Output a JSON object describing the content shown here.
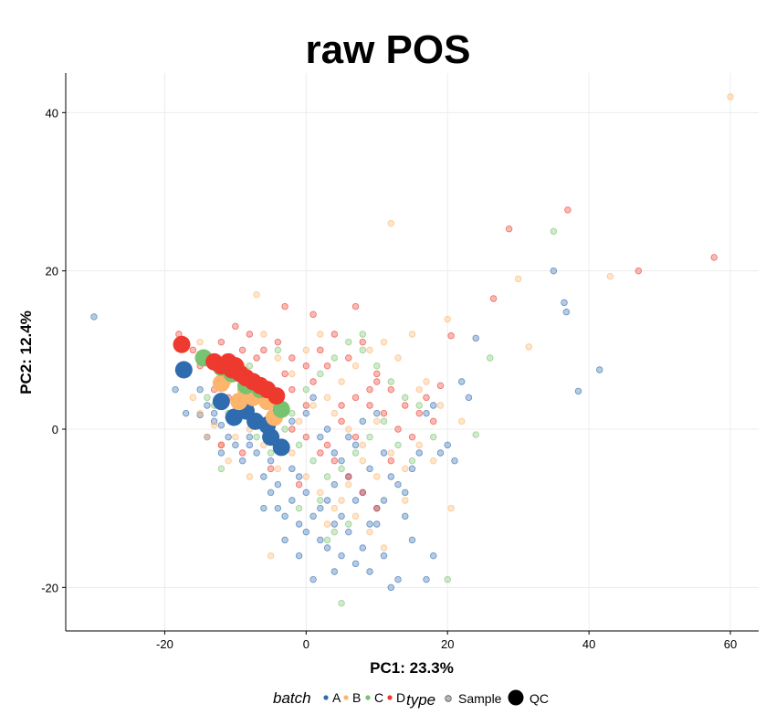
{
  "chart_data": {
    "type": "scatter",
    "title": "raw  POS",
    "xlabel": "PC1: 23.3%",
    "ylabel": "PC2: 12.4%",
    "xlim": [
      -34,
      64
    ],
    "ylim": [
      -25.5,
      45
    ],
    "xticks": [
      -20,
      0,
      20,
      40,
      60
    ],
    "yticks": [
      -20,
      0,
      20,
      40
    ],
    "grid": true,
    "legend_position": "bottom",
    "colors": {
      "A": "#2F6BAF",
      "B": "#FDB46C",
      "C": "#77C36F",
      "D": "#EE3A2E"
    },
    "legend": {
      "batch_title": "batch",
      "batch_labels": [
        "A",
        "B",
        "C",
        "D"
      ],
      "type_title": "type",
      "type_labels": [
        "Sample",
        "QC"
      ]
    },
    "series": [
      {
        "batch": "A",
        "type": "Sample",
        "points": [
          [
            -30,
            14.2
          ],
          [
            -18.5,
            5
          ],
          [
            -17,
            2
          ],
          [
            -15,
            1.8
          ],
          [
            -14,
            3
          ],
          [
            -13,
            1
          ],
          [
            -12,
            0.5
          ],
          [
            -11,
            -1
          ],
          [
            -12,
            -3
          ],
          [
            -10,
            -2
          ],
          [
            -9,
            -4
          ],
          [
            -8,
            -1
          ],
          [
            -7,
            -3
          ],
          [
            -6,
            -6
          ],
          [
            -5,
            -8
          ],
          [
            -4,
            -10
          ],
          [
            -3,
            -11
          ],
          [
            -2,
            -9
          ],
          [
            -1,
            -12
          ],
          [
            0,
            -13
          ],
          [
            1,
            -11
          ],
          [
            2,
            -14
          ],
          [
            3,
            -15
          ],
          [
            4,
            -12
          ],
          [
            5,
            -16
          ],
          [
            6,
            -13
          ],
          [
            7,
            -17
          ],
          [
            8,
            -15
          ],
          [
            9,
            -18
          ],
          [
            10,
            -12
          ],
          [
            11,
            -16
          ],
          [
            12,
            -20
          ],
          [
            13,
            -19
          ],
          [
            14,
            -8
          ],
          [
            15,
            -5
          ],
          [
            16,
            -3
          ],
          [
            17,
            2
          ],
          [
            18,
            3
          ],
          [
            20,
            -2
          ],
          [
            21,
            -4
          ],
          [
            22,
            6
          ],
          [
            23,
            4
          ],
          [
            24,
            11.5
          ],
          [
            35,
            20
          ],
          [
            36.5,
            16
          ],
          [
            36.8,
            14.8
          ],
          [
            38.5,
            4.8
          ],
          [
            41.5,
            7.5
          ],
          [
            -2,
            1
          ],
          [
            0,
            2
          ],
          [
            2,
            -1
          ],
          [
            4,
            -3
          ],
          [
            6,
            -6
          ],
          [
            8,
            -8
          ],
          [
            -9,
            2
          ],
          [
            -6,
            1
          ],
          [
            -3,
            3
          ],
          [
            1,
            4
          ],
          [
            3,
            0
          ],
          [
            5,
            -4
          ],
          [
            7,
            -2
          ],
          [
            9,
            -5
          ],
          [
            11,
            -3
          ],
          [
            13,
            -7
          ],
          [
            -15,
            5
          ],
          [
            -13,
            2
          ],
          [
            -11,
            1.5
          ],
          [
            -8,
            -2
          ],
          [
            -5,
            -4
          ],
          [
            -1,
            -6
          ],
          [
            3,
            -9
          ],
          [
            5,
            -11
          ],
          [
            7,
            -9
          ],
          [
            9,
            -12
          ],
          [
            -4,
            -7
          ],
          [
            -2,
            -5
          ],
          [
            0,
            -8
          ],
          [
            2,
            -10
          ],
          [
            4,
            -7
          ],
          [
            10,
            -10
          ],
          [
            12,
            -6
          ],
          [
            -7,
            1.5
          ],
          [
            -4,
            -2
          ],
          [
            15,
            -14
          ],
          [
            17,
            -19
          ],
          [
            -14,
            -1
          ],
          [
            1,
            -19
          ],
          [
            -10,
            3
          ],
          [
            6,
            -1
          ],
          [
            8,
            1
          ],
          [
            10,
            2
          ],
          [
            -3,
            -14
          ],
          [
            18,
            -16
          ],
          [
            -6,
            -10
          ],
          [
            11,
            -9
          ],
          [
            14,
            -11
          ],
          [
            -12,
            4
          ],
          [
            19,
            -3
          ],
          [
            -1,
            -16
          ],
          [
            4,
            -18
          ]
        ]
      },
      {
        "batch": "B",
        "type": "Sample",
        "points": [
          [
            -16,
            4
          ],
          [
            -15,
            2
          ],
          [
            -14,
            -1
          ],
          [
            -13,
            0.5
          ],
          [
            -12,
            -2
          ],
          [
            -10,
            -1
          ],
          [
            -8,
            0
          ],
          [
            -6,
            -2
          ],
          [
            -4,
            -5
          ],
          [
            -2,
            -3
          ],
          [
            0,
            -6
          ],
          [
            2,
            -8
          ],
          [
            4,
            -10
          ],
          [
            6,
            -7
          ],
          [
            8,
            -4
          ],
          [
            10,
            -6
          ],
          [
            12,
            -3
          ],
          [
            14,
            -5
          ],
          [
            16,
            -2
          ],
          [
            18,
            -4
          ],
          [
            20,
            13.9
          ],
          [
            20.5,
            -10
          ],
          [
            30,
            19
          ],
          [
            31.5,
            10.4
          ],
          [
            43,
            19.3
          ],
          [
            60,
            42
          ],
          [
            -7,
            17
          ],
          [
            12,
            26
          ],
          [
            -5,
            -16
          ],
          [
            3,
            -12
          ],
          [
            5,
            -9
          ],
          [
            7,
            -11
          ],
          [
            9,
            -13
          ],
          [
            11,
            -15
          ],
          [
            -3,
            2
          ],
          [
            -1,
            1
          ],
          [
            1,
            3
          ],
          [
            3,
            4
          ],
          [
            5,
            6
          ],
          [
            7,
            8
          ],
          [
            9,
            10
          ],
          [
            11,
            11
          ],
          [
            13,
            9
          ],
          [
            15,
            12
          ],
          [
            17,
            6
          ],
          [
            19,
            3
          ],
          [
            -11,
            6
          ],
          [
            -9,
            8
          ],
          [
            -5,
            5
          ],
          [
            -2,
            7
          ],
          [
            4,
            2
          ],
          [
            6,
            0
          ],
          [
            8,
            -2
          ],
          [
            10,
            1
          ],
          [
            -6,
            12
          ],
          [
            -4,
            9
          ],
          [
            0,
            10
          ],
          [
            2,
            12
          ],
          [
            -15,
            11
          ],
          [
            16,
            5
          ],
          [
            22,
            1
          ],
          [
            14,
            -9
          ],
          [
            -8,
            -6
          ],
          [
            -11,
            -4
          ]
        ]
      },
      {
        "batch": "C",
        "type": "Sample",
        "points": [
          [
            -13,
            3
          ],
          [
            -11,
            2
          ],
          [
            -9,
            4
          ],
          [
            -7,
            -1
          ],
          [
            -5,
            -3
          ],
          [
            -3,
            0
          ],
          [
            -1,
            -2
          ],
          [
            1,
            -4
          ],
          [
            3,
            -6
          ],
          [
            5,
            -5
          ],
          [
            7,
            -3
          ],
          [
            9,
            -1
          ],
          [
            11,
            1
          ],
          [
            13,
            -2
          ],
          [
            15,
            -4
          ],
          [
            -8,
            8
          ],
          [
            -6,
            6
          ],
          [
            -4,
            4
          ],
          [
            -2,
            2
          ],
          [
            0,
            5
          ],
          [
            2,
            7
          ],
          [
            4,
            9
          ],
          [
            6,
            11
          ],
          [
            8,
            10
          ],
          [
            10,
            8
          ],
          [
            12,
            6
          ],
          [
            35,
            25
          ],
          [
            26,
            9
          ],
          [
            24,
            -0.7
          ],
          [
            20,
            -19
          ],
          [
            5,
            -22
          ],
          [
            -1,
            -10
          ],
          [
            3,
            -14
          ],
          [
            6,
            -12
          ],
          [
            -10,
            7
          ],
          [
            -4,
            10
          ],
          [
            8,
            12
          ],
          [
            14,
            4
          ],
          [
            16,
            3
          ],
          [
            18,
            -1
          ],
          [
            -14,
            4
          ],
          [
            -12,
            -5
          ],
          [
            2,
            -9
          ],
          [
            4,
            -13
          ]
        ]
      },
      {
        "batch": "D",
        "type": "Sample",
        "points": [
          [
            -18,
            12
          ],
          [
            -16,
            10
          ],
          [
            -14,
            9
          ],
          [
            -12,
            11
          ],
          [
            -10,
            8
          ],
          [
            -8,
            12
          ],
          [
            -6,
            10
          ],
          [
            -4,
            11
          ],
          [
            -2,
            9
          ],
          [
            0,
            8
          ],
          [
            2,
            10
          ],
          [
            4,
            12
          ],
          [
            6,
            9
          ],
          [
            8,
            11
          ],
          [
            10,
            7
          ],
          [
            12,
            5
          ],
          [
            14,
            3
          ],
          [
            16,
            2
          ],
          [
            18,
            1
          ],
          [
            -10,
            13
          ],
          [
            -8,
            6
          ],
          [
            -6,
            4
          ],
          [
            -4,
            2
          ],
          [
            -2,
            0
          ],
          [
            0,
            -1
          ],
          [
            2,
            -3
          ],
          [
            4,
            -4
          ],
          [
            6,
            -6
          ],
          [
            8,
            -8
          ],
          [
            10,
            -10
          ],
          [
            -12,
            -2
          ],
          [
            -9,
            -3
          ],
          [
            -5,
            -5
          ],
          [
            -1,
            -7
          ],
          [
            3,
            -2
          ],
          [
            5,
            3
          ],
          [
            7,
            4
          ],
          [
            9,
            5
          ],
          [
            11,
            2
          ],
          [
            13,
            0
          ],
          [
            15,
            -1
          ],
          [
            17,
            4
          ],
          [
            19,
            5.5
          ],
          [
            20.5,
            11.8
          ],
          [
            28.7,
            25.3
          ],
          [
            26.5,
            16.5
          ],
          [
            37,
            27.7
          ],
          [
            47,
            20
          ],
          [
            57.7,
            21.7
          ],
          [
            1,
            14.5
          ],
          [
            7,
            15.5
          ],
          [
            -3,
            15.5
          ],
          [
            -9,
            10
          ],
          [
            -7,
            9
          ],
          [
            -3,
            7
          ],
          [
            1,
            6
          ],
          [
            3,
            8
          ],
          [
            5,
            1
          ],
          [
            7,
            -1
          ],
          [
            9,
            3
          ],
          [
            -11,
            4
          ],
          [
            -13,
            5
          ],
          [
            -15,
            8
          ],
          [
            12,
            -4
          ],
          [
            10,
            6
          ],
          [
            -2,
            5
          ],
          [
            0,
            3
          ]
        ]
      },
      {
        "batch": "A",
        "type": "QC",
        "points": [
          [
            -17.3,
            7.5
          ],
          [
            -12,
            3.5
          ],
          [
            -10.2,
            1.5
          ],
          [
            -8.5,
            2.3
          ],
          [
            -7.2,
            1
          ],
          [
            -5,
            -1
          ],
          [
            -3.5,
            -2.3
          ],
          [
            -5.5,
            0.5
          ]
        ]
      },
      {
        "batch": "B",
        "type": "QC",
        "points": [
          [
            -12,
            5.8
          ],
          [
            -9.5,
            3.5
          ],
          [
            -7.5,
            4
          ],
          [
            -5.5,
            3.5
          ],
          [
            -4.5,
            1.5
          ],
          [
            -8.5,
            5
          ]
        ]
      },
      {
        "batch": "C",
        "type": "QC",
        "points": [
          [
            -14.5,
            9
          ],
          [
            -10.5,
            7
          ],
          [
            -8.5,
            5.5
          ],
          [
            -6.5,
            5
          ],
          [
            -3.5,
            2.5
          ],
          [
            -12,
            7.8
          ]
        ]
      },
      {
        "batch": "D",
        "type": "QC",
        "points": [
          [
            -17.6,
            10.7
          ],
          [
            -13,
            8.5
          ],
          [
            -12,
            8
          ],
          [
            -11,
            8.5
          ],
          [
            -10.5,
            7.5
          ],
          [
            -10,
            8
          ],
          [
            -9.3,
            7
          ],
          [
            -8.5,
            6.5
          ],
          [
            -7.5,
            6
          ],
          [
            -6.5,
            5.5
          ],
          [
            -5.5,
            5
          ],
          [
            -4.2,
            4.2
          ]
        ]
      }
    ]
  }
}
